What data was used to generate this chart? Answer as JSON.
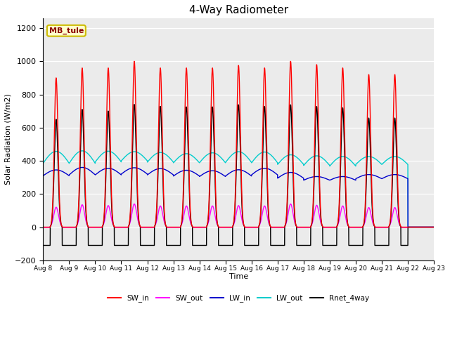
{
  "title": "4-Way Radiometer",
  "xlabel": "Time",
  "ylabel": "Solar Radiation (W/m2)",
  "ylim": [
    -200,
    1260
  ],
  "yticks": [
    -200,
    0,
    200,
    400,
    600,
    800,
    1000,
    1200
  ],
  "start_day": 8,
  "end_day": 23,
  "num_days": 15,
  "label_box_text": "MB_tule",
  "legend_entries": [
    "SW_in",
    "SW_out",
    "LW_in",
    "LW_out",
    "Rnet_4way"
  ],
  "line_colors": {
    "SW_in": "#FF0000",
    "SW_out": "#FF00FF",
    "LW_in": "#0000CC",
    "LW_out": "#00CCCC",
    "Rnet_4way": "#000000"
  },
  "fig_bg_color": "#FFFFFF",
  "plot_bg_color": "#EBEBEB",
  "SW_in_peak": [
    900,
    960,
    960,
    1000,
    960,
    960,
    960,
    975,
    960,
    1000,
    980,
    960,
    920
  ],
  "SW_out_peak": [
    120,
    135,
    130,
    140,
    128,
    128,
    128,
    130,
    128,
    140,
    132,
    128,
    118
  ],
  "LW_in_base": [
    310,
    315,
    315,
    320,
    315,
    308,
    305,
    308,
    315,
    295,
    283,
    283,
    292
  ],
  "LW_in_amp": [
    35,
    45,
    40,
    38,
    38,
    35,
    35,
    38,
    40,
    35,
    22,
    22,
    25
  ],
  "LW_out_base": [
    385,
    385,
    393,
    400,
    392,
    388,
    388,
    390,
    388,
    378,
    372,
    368,
    378
  ],
  "LW_out_amp": [
    72,
    75,
    65,
    55,
    58,
    55,
    60,
    65,
    65,
    58,
    58,
    58,
    48
  ],
  "Rnet_peak": [
    650,
    710,
    700,
    740,
    728,
    725,
    725,
    738,
    728,
    738,
    728,
    720,
    658
  ],
  "Rnet_night": [
    -110,
    -110,
    -110,
    -110,
    -110,
    -110,
    -110,
    -110,
    -110,
    -110,
    -110,
    -110,
    -110
  ]
}
